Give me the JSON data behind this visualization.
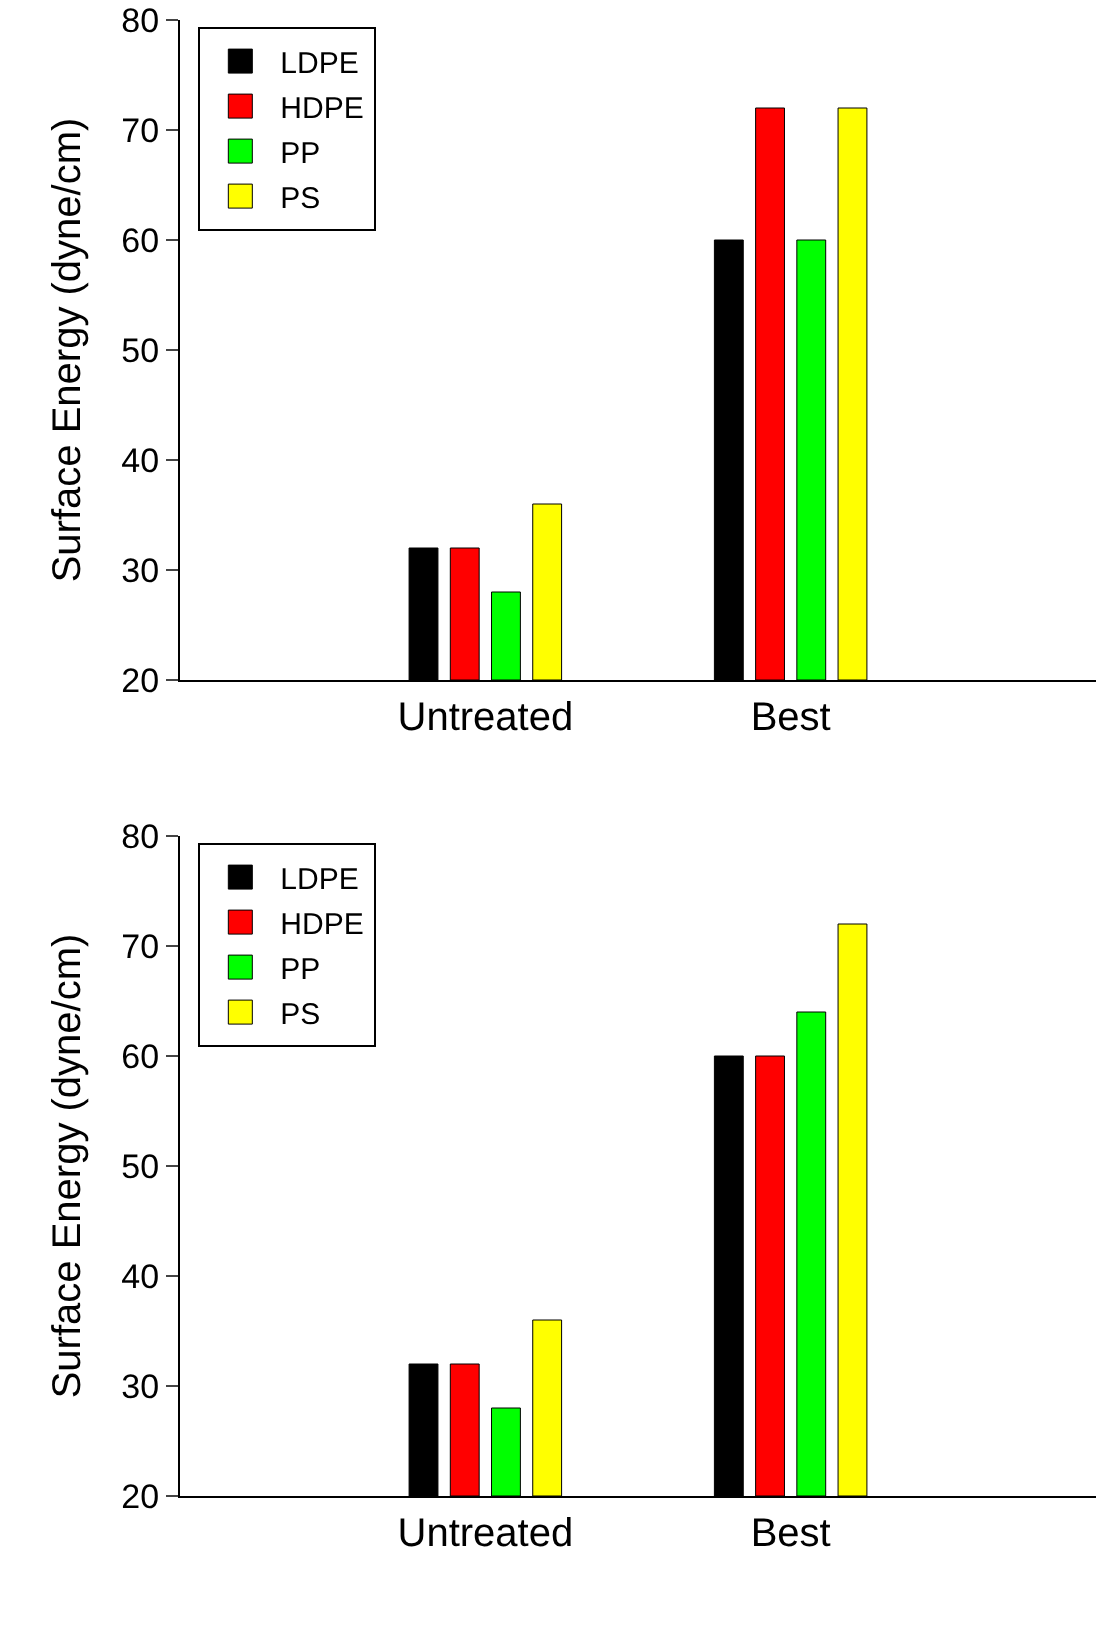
{
  "chart_data": [
    {
      "type": "bar",
      "ylabel": "Surface Energy (dyne/cm)",
      "categories": [
        "Untreated",
        "Best"
      ],
      "ylim": [
        20,
        80
      ],
      "yticks": [
        20,
        30,
        40,
        50,
        60,
        70,
        80
      ],
      "grid": false,
      "legend": "top left",
      "series": [
        {
          "name": "LDPE",
          "color": "#000000",
          "values": [
            32,
            60
          ]
        },
        {
          "name": "HDPE",
          "color": "#ff0000",
          "values": [
            32,
            72
          ]
        },
        {
          "name": "PP",
          "color": "#00ff00",
          "values": [
            28,
            60
          ]
        },
        {
          "name": "PS",
          "color": "#ffff00",
          "values": [
            36,
            72
          ]
        }
      ]
    },
    {
      "type": "bar",
      "ylabel": "Surface Energy (dyne/cm)",
      "categories": [
        "Untreated",
        "Best"
      ],
      "ylim": [
        20,
        80
      ],
      "yticks": [
        20,
        30,
        40,
        50,
        60,
        70,
        80
      ],
      "grid": false,
      "legend": "top left",
      "series": [
        {
          "name": "LDPE",
          "color": "#000000",
          "values": [
            32,
            60
          ]
        },
        {
          "name": "HDPE",
          "color": "#ff0000",
          "values": [
            32,
            60
          ]
        },
        {
          "name": "PP",
          "color": "#00ff00",
          "values": [
            28,
            64
          ]
        },
        {
          "name": "PS",
          "color": "#ffff00",
          "values": [
            36,
            72
          ]
        }
      ]
    }
  ]
}
